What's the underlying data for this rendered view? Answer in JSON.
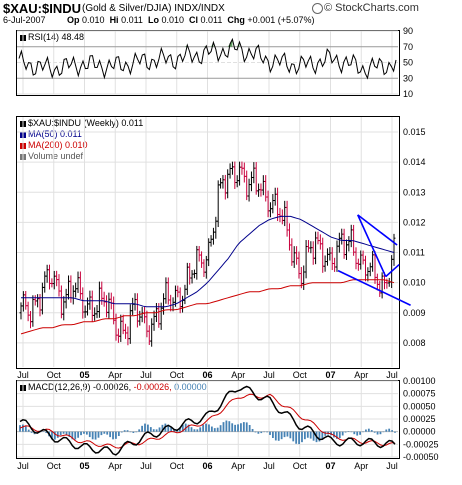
{
  "header": {
    "symbol": "$XAU:$INDU",
    "description": "(Gold & Silver/DJIA) INDX/INDX",
    "date": "6-Jul-2007",
    "quote_parts": [
      {
        "label": "Op",
        "value": "0.010"
      },
      {
        "label": "Hi",
        "value": "0.011"
      },
      {
        "label": "Lo",
        "value": "0.010"
      },
      {
        "label": "Cl",
        "value": "0.011"
      },
      {
        "label": "Chg",
        "value": "+0.001 (+5.07%)"
      }
    ],
    "brand": "© StockCharts.com",
    "brand_icon": "chart-icon"
  },
  "rsi_panel": {
    "legend": "RSI(14) 48.48",
    "y_ticks": [
      "90",
      "70",
      "50",
      "30",
      "10"
    ],
    "colors": {
      "line": "#000000",
      "overbought_fill": "#3a8a3a",
      "oversold_fill": "#d23c3c"
    }
  },
  "price_panel": {
    "legend": [
      {
        "text": "$XAU:$INDU (Weekly) 0.011",
        "color": "#000000",
        "swatch": false
      },
      {
        "text": "MA(50) 0.011",
        "color": "#00008b",
        "swatch": true
      },
      {
        "text": "MA(200) 0.010",
        "color": "#cc0000",
        "swatch": true
      },
      {
        "text": "Volume undef",
        "color": "#555555",
        "swatch": true
      }
    ],
    "colors": {
      "up": "#000000",
      "down": "#c8003c",
      "trendline": "#0000ff"
    }
  },
  "macd_panel": {
    "legend_prefix": "MACD(12,26,9)",
    "macd_value": "-0.00026,",
    "signal_value": "-0.00026,",
    "histogram_value": "0.00000",
    "colors": {
      "macd": "#000000",
      "signal": "#cc0000",
      "histogram": "#4682b4"
    },
    "y_ticks": [
      "0.00100",
      "0.00075",
      "0.00050",
      "0.00025",
      "0.00000",
      "-0.00025",
      "-0.00050"
    ]
  },
  "x_axis": {
    "labels": [
      "Jul",
      "Oct",
      "05",
      "Apr",
      "Jul",
      "Oct",
      "06",
      "Apr",
      "Jul",
      "Oct",
      "07",
      "Apr",
      "Jul"
    ]
  },
  "chart_data": [
    {
      "type": "line",
      "title": "RSI(14) 48.48",
      "ylim": [
        10,
        90
      ],
      "x": [
        "2004-07",
        "2004-10",
        "2005-01",
        "2005-04",
        "2005-07",
        "2005-10",
        "2006-01",
        "2006-04",
        "2006-07",
        "2006-10",
        "2007-01",
        "2007-04",
        "2007-07"
      ],
      "series": [
        {
          "name": "RSI(14)",
          "values": [
            50,
            42,
            48,
            45,
            52,
            55,
            62,
            68,
            52,
            46,
            55,
            42,
            48.48
          ]
        }
      ],
      "reference_lines": [
        70,
        50,
        30
      ]
    },
    {
      "type": "line",
      "title": "$XAU:$INDU (Weekly) 0.011",
      "ylim": [
        0.0072,
        0.0155
      ],
      "y_ticks": [
        0.015,
        0.014,
        0.013,
        0.012,
        0.011,
        0.01,
        0.009,
        0.008
      ],
      "x": [
        "2004-07",
        "2004-08",
        "2004-09",
        "2004-10",
        "2004-11",
        "2004-12",
        "2005-01",
        "2005-02",
        "2005-03",
        "2005-04",
        "2005-05",
        "2005-06",
        "2005-07",
        "2005-08",
        "2005-09",
        "2005-10",
        "2005-11",
        "2005-12",
        "2006-01",
        "2006-02",
        "2006-03",
        "2006-04",
        "2006-05",
        "2006-06",
        "2006-07",
        "2006-08",
        "2006-09",
        "2006-10",
        "2006-11",
        "2006-12",
        "2007-01",
        "2007-02",
        "2007-03",
        "2007-04",
        "2007-05",
        "2007-06",
        "2007-07"
      ],
      "series": [
        {
          "name": "$XAU:$INDU (Weekly)",
          "values": [
            0.009,
            0.0093,
            0.0097,
            0.0101,
            0.0096,
            0.0098,
            0.0092,
            0.0094,
            0.0093,
            0.0087,
            0.0085,
            0.009,
            0.0086,
            0.0089,
            0.0093,
            0.0096,
            0.01,
            0.0105,
            0.011,
            0.0128,
            0.0134,
            0.014,
            0.0131,
            0.0132,
            0.0129,
            0.0122,
            0.0113,
            0.0104,
            0.011,
            0.0112,
            0.0108,
            0.0111,
            0.0115,
            0.0105,
            0.0102,
            0.01,
            0.011
          ]
        },
        {
          "name": "MA(50)",
          "values": [
            0.0095,
            0.0095,
            0.0095,
            0.0095,
            0.0095,
            0.0095,
            0.0094,
            0.0094,
            0.0094,
            0.0093,
            0.0093,
            0.0093,
            0.0092,
            0.0092,
            0.0092,
            0.0093,
            0.0095,
            0.0097,
            0.01,
            0.0104,
            0.0108,
            0.0113,
            0.0116,
            0.0119,
            0.0121,
            0.0122,
            0.0122,
            0.0121,
            0.0119,
            0.0117,
            0.0115,
            0.0114,
            0.0114,
            0.0113,
            0.0112,
            0.0111,
            0.011
          ]
        },
        {
          "name": "MA(200)",
          "values": [
            0.0083,
            0.0084,
            0.0085,
            0.0085,
            0.0086,
            0.0086,
            0.0087,
            0.0087,
            0.0088,
            0.0088,
            0.0089,
            0.0089,
            0.009,
            0.009,
            0.0091,
            0.0091,
            0.0092,
            0.0093,
            0.0093,
            0.0094,
            0.0095,
            0.0096,
            0.0097,
            0.0097,
            0.0098,
            0.0098,
            0.0099,
            0.0099,
            0.01,
            0.01,
            0.01,
            0.01,
            0.0101,
            0.0101,
            0.0101,
            0.0101,
            0.01
          ]
        }
      ]
    },
    {
      "type": "line",
      "title": "MACD(12,26,9) -0.00026, -0.00026, 0.00000",
      "ylim": [
        -0.0005,
        0.001
      ],
      "x": [
        "2004-07",
        "2004-10",
        "2005-01",
        "2005-04",
        "2005-07",
        "2005-10",
        "2006-01",
        "2006-04",
        "2006-07",
        "2006-10",
        "2007-01",
        "2007-04",
        "2007-07"
      ],
      "series": [
        {
          "name": "MACD",
          "values": [
            0.0002,
            -0.0001,
            -0.0003,
            -0.0004,
            -0.0001,
            0.0001,
            0.0003,
            0.0009,
            0.0006,
            0.0001,
            -0.0002,
            -0.0002,
            -0.00026
          ]
        },
        {
          "name": "Signal",
          "values": [
            0.0001,
            0.0,
            -0.0002,
            -0.0003,
            -0.0002,
            0.0,
            0.0002,
            0.0007,
            0.0007,
            0.0003,
            -0.0001,
            -0.0002,
            -0.00026
          ]
        }
      ]
    }
  ]
}
